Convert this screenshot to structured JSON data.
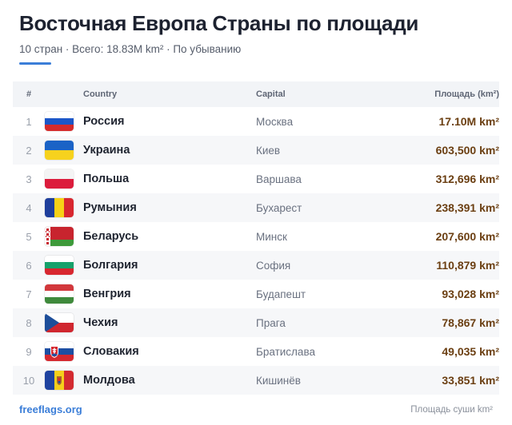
{
  "header": {
    "title": "Восточная Европа Страны по площади",
    "subtitle": "10 стран · Всего: 18.83M km² · По убыванию",
    "accent_color": "#3b7ed8"
  },
  "table": {
    "columns": {
      "num": "#",
      "country": "Country",
      "capital": "Capital",
      "area": "Площадь (km²)"
    },
    "rows": [
      {
        "rank": "1",
        "country": "Россия",
        "capital": "Москва",
        "area": "17.10M km²",
        "flag": "flag-russia"
      },
      {
        "rank": "2",
        "country": "Украина",
        "capital": "Киев",
        "area": "603,500 km²",
        "flag": "flag-ukraine"
      },
      {
        "rank": "3",
        "country": "Польша",
        "capital": "Варшава",
        "area": "312,696 km²",
        "flag": "flag-poland"
      },
      {
        "rank": "4",
        "country": "Румыния",
        "capital": "Бухарест",
        "area": "238,391 km²",
        "flag": "flag-romania"
      },
      {
        "rank": "5",
        "country": "Беларусь",
        "capital": "Минск",
        "area": "207,600 km²",
        "flag": "flag-belarus"
      },
      {
        "rank": "6",
        "country": "Болгария",
        "capital": "София",
        "area": "110,879 km²",
        "flag": "flag-bulgaria"
      },
      {
        "rank": "7",
        "country": "Венгрия",
        "capital": "Будапешт",
        "area": "93,028 km²",
        "flag": "flag-hungary"
      },
      {
        "rank": "8",
        "country": "Чехия",
        "capital": "Прага",
        "area": "78,867 km²",
        "flag": "flag-czechia"
      },
      {
        "rank": "9",
        "country": "Словакия",
        "capital": "Братислава",
        "area": "49,035 km²",
        "flag": "flag-slovakia"
      },
      {
        "rank": "10",
        "country": "Молдова",
        "capital": "Кишинёв",
        "area": "33,851 km²",
        "flag": "flag-moldova"
      }
    ]
  },
  "footer": {
    "link": "freeflags.org",
    "note": "Площадь суши km²"
  },
  "colors": {
    "area_value": "#6b3f12",
    "link": "#3b7ed8",
    "header_row_bg": "#f2f4f7",
    "alt_row_bg": "#f6f7f9"
  }
}
